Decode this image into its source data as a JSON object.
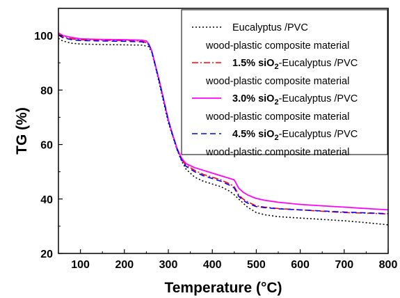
{
  "chart_data": {
    "type": "line",
    "title": "",
    "xlabel": "Temperature (°C)",
    "ylabel": "TG (%)",
    "xlim": [
      50,
      800
    ],
    "ylim": [
      20,
      110
    ],
    "xticks": [
      100,
      200,
      300,
      400,
      500,
      600,
      700,
      800
    ],
    "yticks": [
      20,
      40,
      60,
      80,
      100
    ],
    "grid": false,
    "legend_position": "top-right",
    "series": [
      {
        "key": "s0",
        "legend": {
          "prefix": "",
          "sub": "",
          "suffix": "Eucalyptus /PVC",
          "line2": "wood-plastic composite material"
        },
        "color": "#000000",
        "dash": "2,3",
        "x": [
          50,
          60,
          80,
          100,
          150,
          200,
          240,
          255,
          262,
          270,
          280,
          290,
          300,
          310,
          320,
          330,
          340,
          360,
          380,
          400,
          420,
          440,
          450,
          460,
          470,
          480,
          490,
          500,
          520,
          550,
          600,
          650,
          700,
          750,
          800
        ],
        "y": [
          99.0,
          98.0,
          97.2,
          96.9,
          96.7,
          96.6,
          96.5,
          96.0,
          94.0,
          89.0,
          82.0,
          75.0,
          68.0,
          63.0,
          58.0,
          54.0,
          51.0,
          48.0,
          46.5,
          45.5,
          44.5,
          42.8,
          41.5,
          40.0,
          38.5,
          37.0,
          36.0,
          35.0,
          34.2,
          33.5,
          33.0,
          32.5,
          32.0,
          31.3,
          30.5
        ]
      },
      {
        "key": "s1",
        "legend": {
          "prefix": "1.5% siO",
          "sub": "2",
          "suffix": "-Eucalyptus /PVC",
          "line2": "wood-plastic composite material"
        },
        "color": "#ff0000",
        "dash": "9,3,2,3",
        "x": [
          50,
          60,
          80,
          100,
          150,
          200,
          240,
          255,
          262,
          270,
          280,
          290,
          300,
          310,
          320,
          330,
          340,
          360,
          380,
          400,
          420,
          440,
          450,
          455,
          460,
          470,
          480,
          490,
          500,
          520,
          550,
          600,
          650,
          700,
          750,
          800
        ],
        "y": [
          100.5,
          99.5,
          98.8,
          98.5,
          98.3,
          98.2,
          98.0,
          97.0,
          94.5,
          89.5,
          83.0,
          76.0,
          69.0,
          63.5,
          58.5,
          54.5,
          52.5,
          50.5,
          49.0,
          48.0,
          47.0,
          45.5,
          44.5,
          43.0,
          41.5,
          40.0,
          39.0,
          38.2,
          37.5,
          37.0,
          36.5,
          36.0,
          35.5,
          35.0,
          34.8,
          34.5
        ]
      },
      {
        "key": "s2",
        "legend": {
          "prefix": "3.0% siO",
          "sub": "2",
          "suffix": "-Eucalyptus /PVC",
          "line2": "wood-plastic composite material"
        },
        "color": "#ff00ff",
        "dash": "",
        "x": [
          50,
          60,
          80,
          100,
          150,
          200,
          240,
          250,
          255,
          262,
          270,
          280,
          290,
          300,
          310,
          320,
          330,
          340,
          360,
          380,
          400,
          420,
          440,
          450,
          455,
          460,
          470,
          480,
          490,
          500,
          520,
          550,
          600,
          650,
          700,
          750,
          800
        ],
        "y": [
          101.0,
          100.0,
          99.3,
          98.8,
          98.6,
          98.5,
          98.3,
          98.0,
          97.0,
          94.5,
          89.5,
          83.0,
          76.0,
          69.0,
          63.5,
          58.5,
          55.0,
          53.0,
          51.5,
          50.5,
          49.5,
          48.5,
          47.5,
          47.0,
          45.5,
          44.0,
          42.5,
          41.5,
          40.8,
          40.2,
          39.5,
          38.8,
          38.0,
          37.5,
          37.0,
          36.5,
          36.0
        ]
      },
      {
        "key": "s3",
        "legend": {
          "prefix": "4.5% siO",
          "sub": "2",
          "suffix": "-Eucalyptus /PVC",
          "line2": "wood-plastic composite material"
        },
        "color": "#0000ff",
        "dash": "8,5",
        "x": [
          50,
          60,
          80,
          100,
          150,
          200,
          240,
          255,
          262,
          270,
          280,
          290,
          300,
          310,
          320,
          330,
          340,
          360,
          380,
          400,
          420,
          440,
          450,
          455,
          460,
          470,
          480,
          490,
          500,
          520,
          550,
          600,
          650,
          700,
          750,
          800
        ],
        "y": [
          100.2,
          99.2,
          98.5,
          98.2,
          98.0,
          97.9,
          97.7,
          96.8,
          94.3,
          89.3,
          82.8,
          75.8,
          68.8,
          63.3,
          58.3,
          54.3,
          52.0,
          50.0,
          48.5,
          47.5,
          46.5,
          45.0,
          44.0,
          42.5,
          41.0,
          39.5,
          38.5,
          37.8,
          37.2,
          36.8,
          36.4,
          36.0,
          35.6,
          35.2,
          34.9,
          34.6
        ]
      }
    ]
  }
}
